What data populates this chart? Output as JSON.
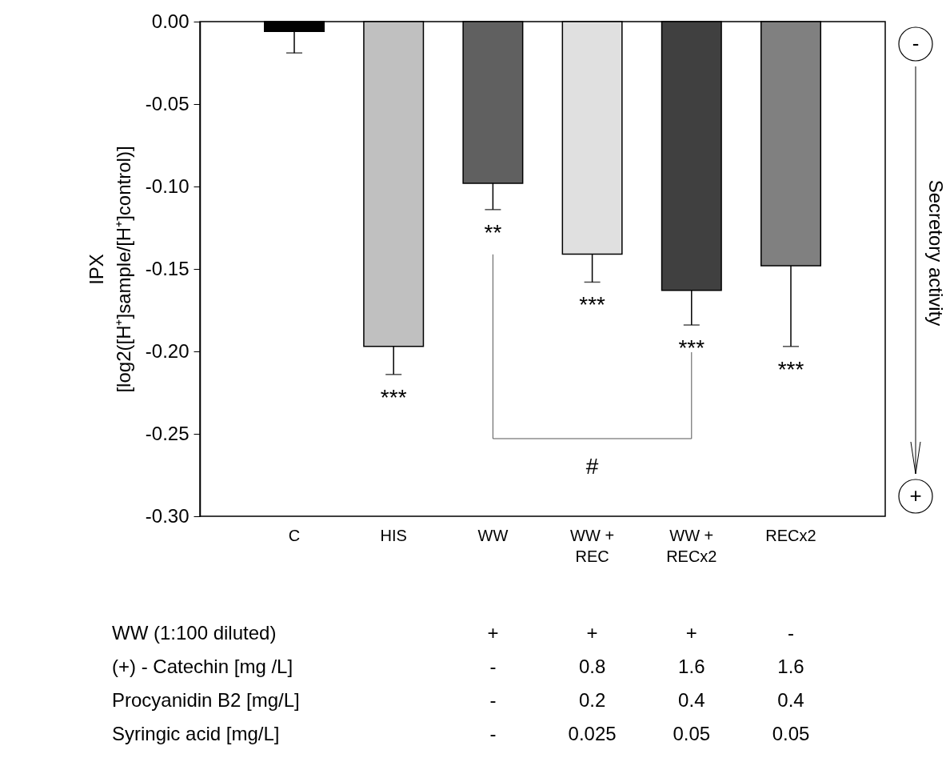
{
  "chart_data": {
    "type": "bar",
    "ylabel": "IPX\n[log2([H⁺]sample/[H⁺]control)]",
    "y2label": "Secretory activity",
    "categories": [
      "C",
      "HIS",
      "WW",
      "WW + REC",
      "WW + RECx2",
      "RECx2"
    ],
    "values": [
      -0.006,
      -0.197,
      -0.098,
      -0.141,
      -0.163,
      -0.148
    ],
    "colors": [
      "#000000",
      "#c0c0c0",
      "#606060",
      "#e0e0e0",
      "#404040",
      "#808080"
    ],
    "errors": [
      [
        -0.019,
        -0.006
      ],
      [
        -0.214,
        -0.197
      ],
      [
        -0.114,
        -0.098
      ],
      [
        -0.158,
        -0.141
      ],
      [
        -0.184,
        -0.163
      ],
      [
        -0.197,
        -0.148
      ]
    ],
    "ylim": [
      -0.3,
      0
    ],
    "yticks": [
      {
        "value": 0,
        "label": "0.00"
      },
      {
        "value": -0.05,
        "label": "-0.05"
      },
      {
        "value": -0.1,
        "label": "-0.10"
      },
      {
        "value": -0.15,
        "label": "-0.15"
      },
      {
        "value": -0.2,
        "label": "-0.20"
      },
      {
        "value": -0.25,
        "label": "-0.25"
      },
      {
        "value": -0.3,
        "label": "-0.30"
      }
    ],
    "annotations": [
      "***",
      "**",
      "***",
      "***",
      "***",
      "#",
      "-",
      "+",
      "WW (1:100 diluted)",
      "+",
      "+",
      "+",
      "-",
      "(+) - Catechin  [mg /L]",
      "-",
      "0.8",
      "1.6",
      "1.6",
      "Procyanidin B2 [mg/L]",
      "-",
      "0.2",
      "0.4",
      "0.4",
      "Syringic acid  [mg/L]",
      "-",
      "0.025",
      "0.05",
      "0.05"
    ]
  }
}
